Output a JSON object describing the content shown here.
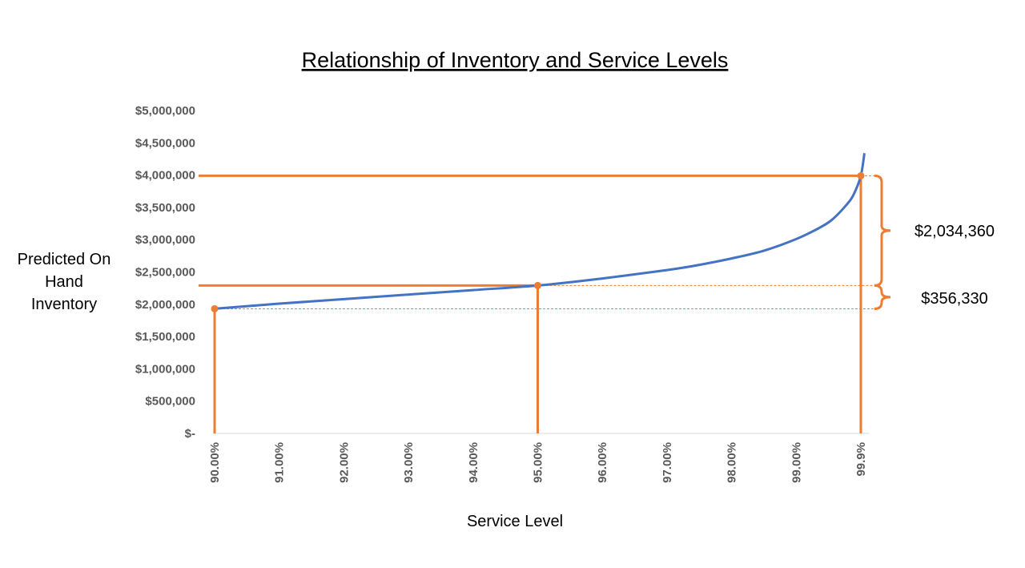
{
  "chart_data": {
    "type": "line",
    "title": "Relationship of Inventory and Service Levels",
    "xlabel": "Service Level",
    "ylabel": [
      "Predicted On",
      "Hand",
      "Inventory"
    ],
    "x_categories": [
      "90.00%",
      "91.00%",
      "92.00%",
      "93.00%",
      "94.00%",
      "95.00%",
      "96.00%",
      "97.00%",
      "98.00%",
      "99.00%",
      "99.9%"
    ],
    "y_ticks": [
      "$-",
      "$500,000",
      "$1,000,000",
      "$1,500,000",
      "$2,000,000",
      "$2,500,000",
      "$3,000,000",
      "$3,500,000",
      "$4,000,000",
      "$4,500,000",
      "$5,000,000"
    ],
    "ylim": [
      0,
      5000000
    ],
    "grid": false,
    "series": [
      {
        "x": [
          90.0,
          91.0,
          92.0,
          93.0,
          94.0,
          95.0,
          96.0,
          97.0,
          97.5,
          98.0,
          98.5,
          99.0,
          99.3,
          99.5,
          99.7,
          99.8,
          99.9,
          99.95
        ],
        "values": [
          1930000,
          2010000,
          2080000,
          2150000,
          2220000,
          2290000,
          2400000,
          2530000,
          2610000,
          2710000,
          2830000,
          3010000,
          3170000,
          3310000,
          3540000,
          3700000,
          3990000,
          4340000
        ]
      }
    ],
    "highlight_points": [
      {
        "x_label": "90.00%",
        "value": 1930000
      },
      {
        "x_label": "95.00%",
        "value": 2290000
      },
      {
        "x_label": "99.9%",
        "value": 3990000
      }
    ],
    "annotations": [
      "$2,034,360",
      "$356,330"
    ],
    "colors": {
      "line": "#4472C4",
      "highlight": "#ED7D31",
      "tick_text": "#595959"
    }
  }
}
